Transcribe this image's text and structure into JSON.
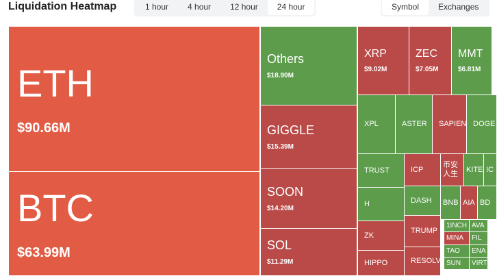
{
  "header": {
    "title": "Liquidation Heatmap",
    "time_tabs": [
      "1 hour",
      "4 hour",
      "12 hour",
      "24 hour"
    ],
    "view_tabs": [
      "Symbol",
      "Exchanges"
    ]
  },
  "tiles": [
    {
      "label": "ETH",
      "value": "$90.66M"
    },
    {
      "label": "BTC",
      "value": "$63.99M"
    },
    {
      "label": "Others",
      "value": "$18.90M"
    },
    {
      "label": "GIGGLE",
      "value": "$15.39M"
    },
    {
      "label": "SOON",
      "value": "$14.20M"
    },
    {
      "label": "SOL",
      "value": "$11.29M"
    },
    {
      "label": "XRP",
      "value": "$9.02M"
    },
    {
      "label": "ZEC",
      "value": "$7.05M"
    },
    {
      "label": "MMT",
      "value": "$6.81M"
    },
    {
      "label": "XPL"
    },
    {
      "label": "ASTER"
    },
    {
      "label": "SAPIEN"
    },
    {
      "label": "DOGE"
    },
    {
      "label": "TRUST"
    },
    {
      "label": "ICP"
    },
    {
      "label": "币安人生"
    },
    {
      "label": "KITE"
    },
    {
      "label": "IC"
    },
    {
      "label": "H"
    },
    {
      "label": "DASH"
    },
    {
      "label": "BNB"
    },
    {
      "label": "AIA"
    },
    {
      "label": "BD"
    },
    {
      "label": "ZK"
    },
    {
      "label": "TRUMP"
    },
    {
      "label": "1INCH"
    },
    {
      "label": "AVA"
    },
    {
      "label": "MINA"
    },
    {
      "label": "FIL"
    },
    {
      "label": "TAO"
    },
    {
      "label": "ENA"
    },
    {
      "label": "SUN"
    },
    {
      "label": "VIRT"
    },
    {
      "label": "HIPPO"
    },
    {
      "label": "RESOLV"
    }
  ]
}
